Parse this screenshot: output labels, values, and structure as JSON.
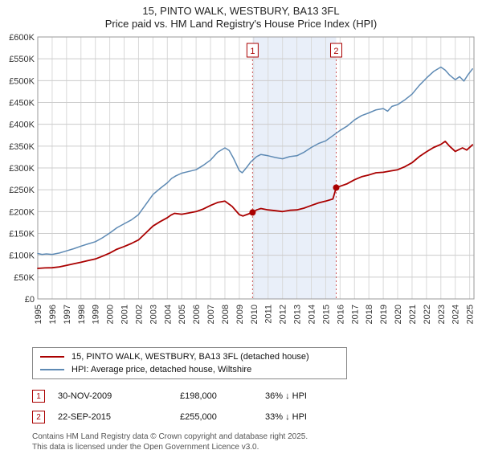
{
  "title": "15, PINTO WALK, WESTBURY, BA13 3FL",
  "subtitle": "Price paid vs. HM Land Registry's House Price Index (HPI)",
  "chart_data": {
    "type": "line",
    "title": "15, PINTO WALK, WESTBURY, BA13 3FL — Price paid vs. HPI",
    "grid": true,
    "legend_position": "bottom",
    "x_axis": {
      "min": 1995,
      "max": 2025,
      "ticks": [
        1995,
        1996,
        1997,
        1998,
        1999,
        2000,
        2001,
        2002,
        2003,
        2004,
        2005,
        2006,
        2007,
        2008,
        2009,
        2010,
        2011,
        2012,
        2013,
        2014,
        2015,
        2016,
        2017,
        2018,
        2019,
        2020,
        2021,
        2022,
        2023,
        2024,
        2025
      ]
    },
    "y_axis": {
      "min": 0,
      "max": 600000,
      "tick_step": 50000,
      "tick_labels": [
        "£0",
        "£50K",
        "£100K",
        "£150K",
        "£200K",
        "£250K",
        "£300K",
        "£350K",
        "£400K",
        "£450K",
        "£500K",
        "£550K",
        "£600K"
      ]
    },
    "shaded_region": {
      "from": 2009.92,
      "to": 2015.73,
      "color": "#e9eff9"
    },
    "series": [
      {
        "name": "15, PINTO WALK, WESTBURY, BA13 3FL (detached house)",
        "color": "#aa0000",
        "width": 1.8,
        "points": [
          [
            1995,
            70000
          ],
          [
            1995.5,
            71000
          ],
          [
            1996,
            71500
          ],
          [
            1996.5,
            73500
          ],
          [
            1997,
            77000
          ],
          [
            1997.5,
            80500
          ],
          [
            1998,
            84000
          ],
          [
            1998.5,
            88000
          ],
          [
            1999,
            91500
          ],
          [
            1999.5,
            98000
          ],
          [
            2000,
            105000
          ],
          [
            2000.5,
            114000
          ],
          [
            2001,
            120000
          ],
          [
            2001.5,
            127000
          ],
          [
            2002,
            135000
          ],
          [
            2002.5,
            151000
          ],
          [
            2003,
            167000
          ],
          [
            2003.5,
            177000
          ],
          [
            2004,
            186000
          ],
          [
            2004.25,
            192000
          ],
          [
            2004.5,
            196000
          ],
          [
            2005,
            194000
          ],
          [
            2005.5,
            197000
          ],
          [
            2006,
            200000
          ],
          [
            2006.5,
            206000
          ],
          [
            2007,
            214000
          ],
          [
            2007.5,
            221000
          ],
          [
            2008,
            224000
          ],
          [
            2008.5,
            212000
          ],
          [
            2009,
            193000
          ],
          [
            2009.25,
            190000
          ],
          [
            2009.5,
            193000
          ],
          [
            2009.92,
            198000
          ],
          [
            2010.2,
            204000
          ],
          [
            2010.5,
            207000
          ],
          [
            2011,
            204000
          ],
          [
            2011.5,
            202000
          ],
          [
            2012,
            200000
          ],
          [
            2012.5,
            203000
          ],
          [
            2013,
            204000
          ],
          [
            2013.5,
            208000
          ],
          [
            2014,
            214000
          ],
          [
            2014.5,
            220000
          ],
          [
            2015,
            224000
          ],
          [
            2015.5,
            229000
          ],
          [
            2015.73,
            255000
          ],
          [
            2016,
            258000
          ],
          [
            2016.5,
            264000
          ],
          [
            2017,
            273000
          ],
          [
            2017.5,
            280000
          ],
          [
            2018,
            284000
          ],
          [
            2018.5,
            289000
          ],
          [
            2019,
            290000
          ],
          [
            2019.5,
            293000
          ],
          [
            2020,
            296000
          ],
          [
            2020.5,
            303000
          ],
          [
            2021,
            312000
          ],
          [
            2021.5,
            326000
          ],
          [
            2022,
            337000
          ],
          [
            2022.5,
            347000
          ],
          [
            2023,
            354000
          ],
          [
            2023.3,
            361000
          ],
          [
            2023.6,
            350000
          ],
          [
            2024,
            338000
          ],
          [
            2024.5,
            346000
          ],
          [
            2024.8,
            341000
          ],
          [
            2025.2,
            353000
          ]
        ]
      },
      {
        "name": "HPI: Average price, detached house, Wiltshire",
        "color": "#5e8ab4",
        "width": 1.5,
        "points": [
          [
            1995,
            104000
          ],
          [
            1995.3,
            102000
          ],
          [
            1995.6,
            103000
          ],
          [
            1996,
            102000
          ],
          [
            1996.5,
            105000
          ],
          [
            1997,
            110000
          ],
          [
            1997.5,
            115000
          ],
          [
            1998,
            121000
          ],
          [
            1998.5,
            126000
          ],
          [
            1999,
            131000
          ],
          [
            1999.5,
            140000
          ],
          [
            2000,
            151000
          ],
          [
            2000.5,
            163000
          ],
          [
            2001,
            172000
          ],
          [
            2001.5,
            181000
          ],
          [
            2002,
            193000
          ],
          [
            2002.5,
            216000
          ],
          [
            2003,
            239000
          ],
          [
            2003.5,
            253000
          ],
          [
            2004,
            266000
          ],
          [
            2004.3,
            276000
          ],
          [
            2004.6,
            282000
          ],
          [
            2005,
            288000
          ],
          [
            2005.5,
            292000
          ],
          [
            2006,
            296000
          ],
          [
            2006.5,
            306000
          ],
          [
            2007,
            318000
          ],
          [
            2007.5,
            336000
          ],
          [
            2008,
            346000
          ],
          [
            2008.3,
            340000
          ],
          [
            2008.6,
            322000
          ],
          [
            2009,
            294000
          ],
          [
            2009.2,
            289000
          ],
          [
            2009.5,
            301000
          ],
          [
            2009.8,
            314000
          ],
          [
            2010.2,
            326000
          ],
          [
            2010.5,
            331000
          ],
          [
            2011,
            328000
          ],
          [
            2011.5,
            324000
          ],
          [
            2012,
            321000
          ],
          [
            2012.5,
            326000
          ],
          [
            2013,
            328000
          ],
          [
            2013.5,
            336000
          ],
          [
            2014,
            347000
          ],
          [
            2014.5,
            356000
          ],
          [
            2015,
            362000
          ],
          [
            2015.5,
            374000
          ],
          [
            2016,
            386000
          ],
          [
            2016.5,
            396000
          ],
          [
            2017,
            410000
          ],
          [
            2017.5,
            420000
          ],
          [
            2018,
            426000
          ],
          [
            2018.5,
            433000
          ],
          [
            2019,
            436000
          ],
          [
            2019.3,
            430000
          ],
          [
            2019.6,
            441000
          ],
          [
            2020,
            445000
          ],
          [
            2020.5,
            456000
          ],
          [
            2021,
            469000
          ],
          [
            2021.5,
            489000
          ],
          [
            2022,
            506000
          ],
          [
            2022.5,
            521000
          ],
          [
            2023,
            531000
          ],
          [
            2023.3,
            524000
          ],
          [
            2023.6,
            513000
          ],
          [
            2024,
            502000
          ],
          [
            2024.3,
            509000
          ],
          [
            2024.6,
            499000
          ],
          [
            2024.9,
            514000
          ],
          [
            2025.2,
            527000
          ]
        ]
      }
    ],
    "markers": [
      {
        "label": "1",
        "x": 2009.92,
        "y": 198000
      },
      {
        "label": "2",
        "x": 2015.73,
        "y": 255000
      }
    ]
  },
  "annotations": [
    {
      "num": "1",
      "date": "30-NOV-2009",
      "price": "£198,000",
      "hpi": "36% ↓ HPI"
    },
    {
      "num": "2",
      "date": "22-SEP-2015",
      "price": "£255,000",
      "hpi": "33% ↓ HPI"
    }
  ],
  "footer": {
    "line1": "Contains HM Land Registry data © Crown copyright and database right 2025.",
    "line2": "This data is licensed under the Open Government Licence v3.0."
  }
}
